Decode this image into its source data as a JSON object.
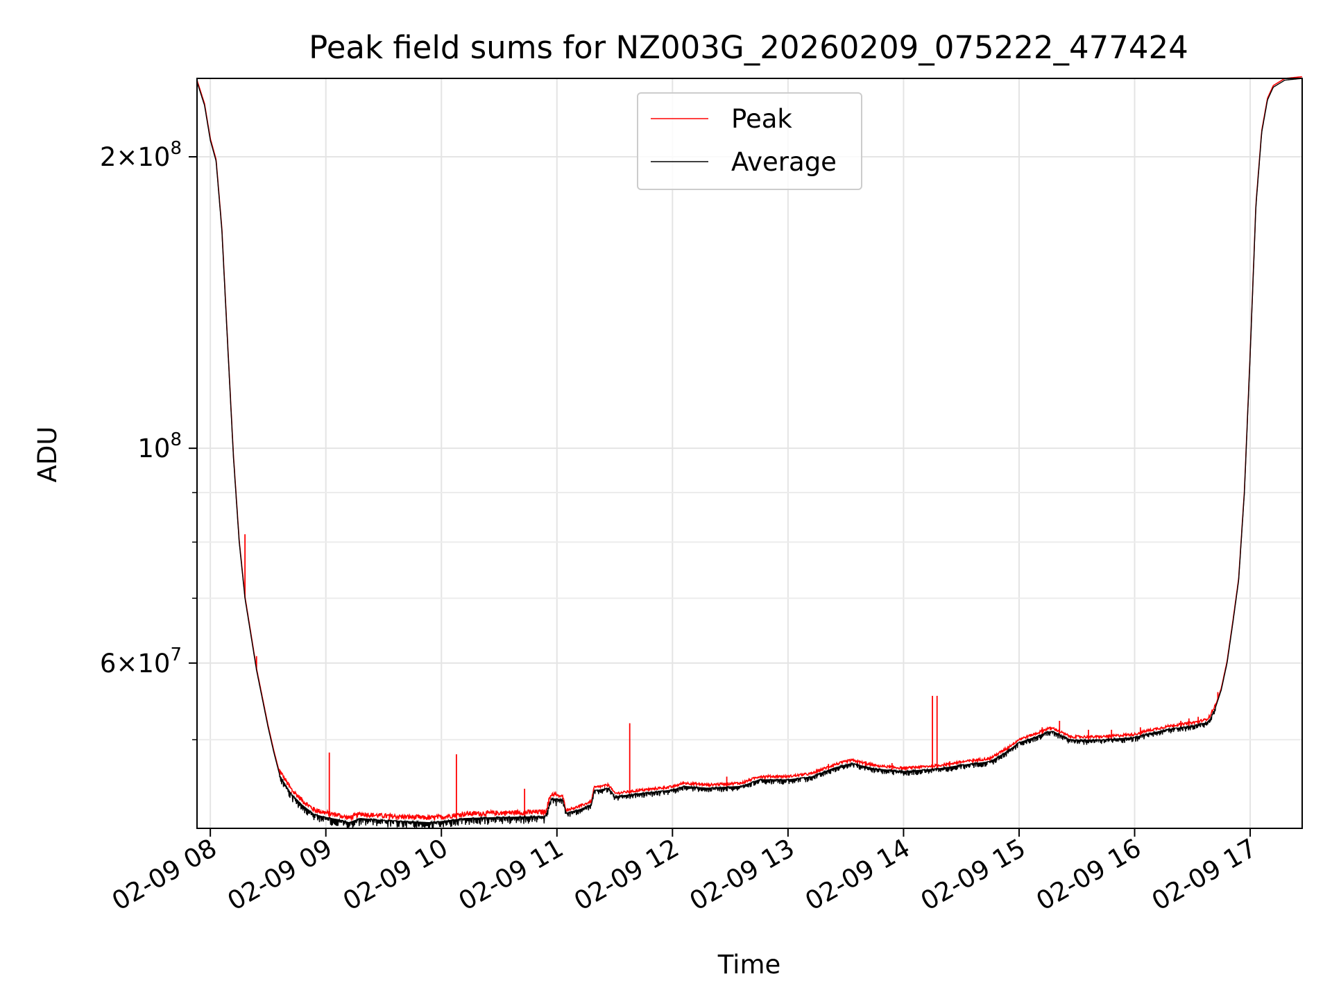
{
  "chart_data": {
    "type": "line",
    "title": "Peak field sums for NZ003G_20260209_075222_477424",
    "xlabel": "Time",
    "ylabel": "ADU",
    "yscale": "log",
    "ylim": [
      40500000,
      241000000
    ],
    "xlim": [
      7.885,
      17.45
    ],
    "grid": true,
    "legend_position": "upper center",
    "x_ticks": [
      {
        "value": 8,
        "label": "02-09 08"
      },
      {
        "value": 9,
        "label": "02-09 09"
      },
      {
        "value": 10,
        "label": "02-09 10"
      },
      {
        "value": 11,
        "label": "02-09 11"
      },
      {
        "value": 12,
        "label": "02-09 12"
      },
      {
        "value": 13,
        "label": "02-09 13"
      },
      {
        "value": 14,
        "label": "02-09 14"
      },
      {
        "value": 15,
        "label": "02-09 15"
      },
      {
        "value": 16,
        "label": "02-09 16"
      },
      {
        "value": 17,
        "label": "02-09 17"
      }
    ],
    "y_major_ticks": [
      {
        "value": 60000000,
        "base": "6",
        "exp": "7"
      },
      {
        "value": 100000000,
        "base": "10",
        "exp": "8"
      },
      {
        "value": 200000000,
        "base": "2",
        "exp": "8"
      }
    ],
    "y_minor_ticks": [
      50000000,
      70000000,
      80000000,
      90000000
    ],
    "x_unit": "hour of day on 2026-02-09",
    "series": [
      {
        "name": "Average",
        "color": "#000000",
        "points": [
          [
            7.885,
            239000000
          ],
          [
            7.95,
            226000000
          ],
          [
            8.0,
            208000000
          ],
          [
            8.05,
            198000000
          ],
          [
            8.1,
            168000000
          ],
          [
            8.15,
            128000000
          ],
          [
            8.2,
            98000000
          ],
          [
            8.25,
            80000000
          ],
          [
            8.3,
            70000000
          ],
          [
            8.4,
            59000000
          ],
          [
            8.5,
            51500000
          ],
          [
            8.55,
            48500000
          ],
          [
            8.6,
            46000000
          ],
          [
            8.7,
            44000000
          ],
          [
            8.8,
            42800000
          ],
          [
            8.9,
            41900000
          ],
          [
            9.0,
            41600000
          ],
          [
            9.1,
            41400000
          ],
          [
            9.2,
            41100000
          ],
          [
            9.3,
            41500000
          ],
          [
            9.5,
            41300000
          ],
          [
            9.7,
            41200000
          ],
          [
            9.9,
            41100000
          ],
          [
            10.0,
            41200000
          ],
          [
            10.2,
            41500000
          ],
          [
            10.5,
            41600000
          ],
          [
            10.9,
            41700000
          ],
          [
            10.95,
            43500000
          ],
          [
            11.05,
            43400000
          ],
          [
            11.08,
            42000000
          ],
          [
            11.2,
            42400000
          ],
          [
            11.3,
            42900000
          ],
          [
            11.32,
            44300000
          ],
          [
            11.45,
            44600000
          ],
          [
            11.5,
            43700000
          ],
          [
            11.7,
            44000000
          ],
          [
            12.0,
            44400000
          ],
          [
            12.1,
            44800000
          ],
          [
            12.3,
            44600000
          ],
          [
            12.6,
            44800000
          ],
          [
            12.75,
            45500000
          ],
          [
            13.0,
            45500000
          ],
          [
            13.2,
            45800000
          ],
          [
            13.4,
            46800000
          ],
          [
            13.55,
            47300000
          ],
          [
            13.75,
            46700000
          ],
          [
            14.0,
            46400000
          ],
          [
            14.3,
            46700000
          ],
          [
            14.5,
            47100000
          ],
          [
            14.75,
            47500000
          ],
          [
            14.9,
            48700000
          ],
          [
            15.0,
            49700000
          ],
          [
            15.15,
            50400000
          ],
          [
            15.25,
            51000000
          ],
          [
            15.3,
            51000000
          ],
          [
            15.4,
            50300000
          ],
          [
            15.45,
            50000000
          ],
          [
            15.7,
            50000000
          ],
          [
            16.0,
            50300000
          ],
          [
            16.1,
            50700000
          ],
          [
            16.3,
            51300000
          ],
          [
            16.5,
            51700000
          ],
          [
            16.62,
            52100000
          ],
          [
            16.65,
            52500000
          ],
          [
            16.7,
            54000000
          ],
          [
            16.75,
            56300000
          ],
          [
            16.8,
            60000000
          ],
          [
            16.85,
            66000000
          ],
          [
            16.9,
            73000000
          ],
          [
            16.95,
            90000000
          ],
          [
            17.0,
            125000000
          ],
          [
            17.05,
            178000000
          ],
          [
            17.1,
            212000000
          ],
          [
            17.15,
            229000000
          ],
          [
            17.2,
            236000000
          ],
          [
            17.3,
            240000000
          ],
          [
            17.45,
            241000000
          ]
        ]
      },
      {
        "name": "Peak",
        "color": "#ff0000",
        "spikes": [
          [
            8.3,
            81500000
          ],
          [
            8.4,
            61000000
          ],
          [
            8.6,
            46500000
          ],
          [
            8.7,
            44200000
          ],
          [
            9.03,
            48500000
          ],
          [
            9.55,
            41900000
          ],
          [
            10.13,
            48300000
          ],
          [
            10.72,
            44500000
          ],
          [
            10.93,
            43500000
          ],
          [
            11.63,
            52000000
          ],
          [
            12.47,
            45800000
          ],
          [
            12.8,
            45700000
          ],
          [
            13.35,
            47200000
          ],
          [
            13.6,
            47600000
          ],
          [
            13.67,
            47500000
          ],
          [
            13.9,
            47300000
          ],
          [
            14.25,
            55500000
          ],
          [
            14.29,
            55500000
          ],
          [
            14.4,
            47500000
          ],
          [
            14.6,
            47800000
          ],
          [
            14.9,
            49000000
          ],
          [
            15.2,
            51500000
          ],
          [
            15.35,
            52300000
          ],
          [
            15.6,
            51200000
          ],
          [
            15.8,
            51200000
          ],
          [
            16.05,
            51500000
          ],
          [
            16.4,
            52300000
          ],
          [
            16.47,
            52600000
          ],
          [
            16.55,
            52800000
          ],
          [
            16.7,
            54500000
          ],
          [
            16.72,
            56000000
          ]
        ]
      }
    ]
  },
  "legend": {
    "peak_label": "Peak",
    "average_label": "Average"
  }
}
